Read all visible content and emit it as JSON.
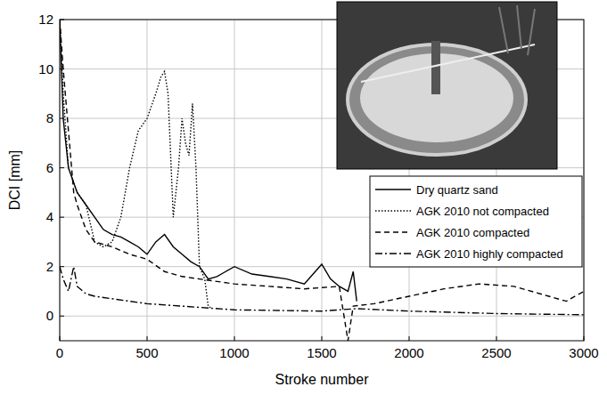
{
  "chart_data": {
    "type": "line",
    "x_label": "Stroke number",
    "y_label": "DCI [mm]",
    "xlim": [
      0,
      3000
    ],
    "ylim": [
      -1,
      12
    ],
    "xticks": [
      0,
      500,
      1000,
      1500,
      2000,
      2500,
      3000
    ],
    "yticks": [
      0,
      2,
      4,
      6,
      8,
      10,
      12
    ],
    "grid": true,
    "legend": "right",
    "series": [
      {
        "name": "Dry quartz sand",
        "color": "#000000",
        "line_style": "solid",
        "x": [
          0,
          20,
          50,
          100,
          150,
          200,
          250,
          300,
          350,
          400,
          450,
          500,
          550,
          600,
          650,
          700,
          750,
          800,
          850,
          900,
          950,
          1000,
          1100,
          1200,
          1300,
          1400,
          1500,
          1550,
          1600,
          1650,
          1680,
          1700
        ],
        "values": [
          12,
          8,
          6,
          5,
          4.5,
          4,
          3.5,
          3.3,
          3.2,
          3,
          2.8,
          2.5,
          3,
          3.3,
          2.8,
          2.5,
          2.2,
          2,
          1.5,
          1.6,
          1.8,
          2,
          1.7,
          1.6,
          1.5,
          1.3,
          2.1,
          1.5,
          1.2,
          1,
          1.8,
          0.6
        ]
      },
      {
        "name": "AGK 2010 not compacted",
        "color": "#000000",
        "line_style": "dotted",
        "x": [
          0,
          20,
          50,
          100,
          150,
          200,
          250,
          300,
          350,
          400,
          450,
          500,
          550,
          580,
          600,
          620,
          650,
          680,
          700,
          720,
          740,
          760,
          780,
          800,
          830,
          850,
          870
        ],
        "values": [
          12,
          9,
          6,
          5,
          4.5,
          3,
          2.8,
          3,
          4,
          6,
          7.5,
          8,
          9,
          9.7,
          9.9,
          9,
          4,
          6,
          8,
          7,
          6.5,
          8.6,
          6,
          2,
          1.5,
          0.4,
          0.3
        ]
      },
      {
        "name": "AGK 2010 compacted",
        "color": "#000000",
        "line_style": "dashed",
        "x": [
          0,
          20,
          50,
          80,
          100,
          150,
          200,
          300,
          400,
          500,
          600,
          700,
          800,
          900,
          1000,
          1200,
          1400,
          1600,
          1650,
          1680,
          1800,
          2000,
          2200,
          2400,
          2600,
          2800,
          2900,
          3000
        ],
        "values": [
          12,
          10,
          7.5,
          5,
          4.5,
          3.5,
          3,
          2.8,
          2.5,
          2.3,
          1.8,
          1.6,
          1.5,
          1.4,
          1.3,
          1.2,
          1.1,
          1.2,
          -1,
          0.4,
          0.5,
          0.8,
          1.1,
          1.3,
          1.2,
          0.8,
          0.6,
          1
        ]
      },
      {
        "name": "AGK 2010 highly compacted",
        "color": "#000000",
        "line_style": "dashdot",
        "x": [
          0,
          20,
          50,
          80,
          100,
          150,
          200,
          300,
          500,
          700,
          1000,
          1500,
          1700,
          2000,
          2500,
          3000
        ],
        "values": [
          2,
          1.5,
          1,
          2,
          1.2,
          0.9,
          0.8,
          0.7,
          0.5,
          0.4,
          0.25,
          0.2,
          0.3,
          0.2,
          0.1,
          0.05
        ]
      }
    ]
  }
}
